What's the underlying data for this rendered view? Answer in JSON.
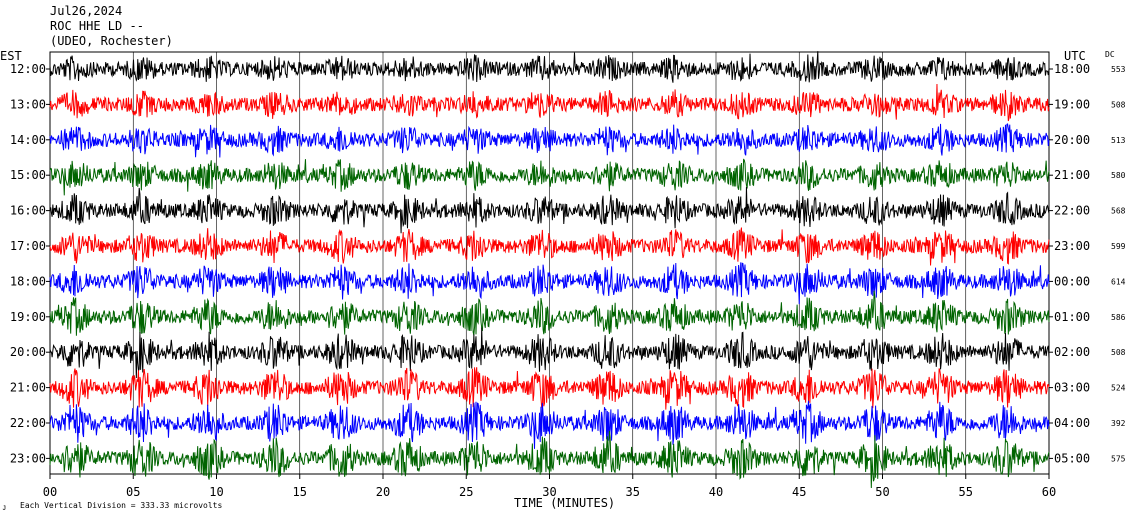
{
  "header": {
    "date": "Jul26,2024",
    "station": "ROC HHE LD --",
    "network": "(UDEO, Rochester)"
  },
  "left_axis_label": "EST",
  "right_axis_label": "UTC",
  "dc_label": "DC",
  "x_axis_title": "TIME (MINUTES)",
  "footnote": "Each Vertical Division =  333.33 microvolts",
  "footnote_mark": "ᴊ",
  "colors": {
    "cycle": [
      "#000000",
      "#ff0000",
      "#0000ff",
      "#006400"
    ],
    "axes": "#000000",
    "grid": "#000000"
  },
  "chart_data": {
    "type": "line",
    "x_range": [
      0,
      60
    ],
    "x_ticks": [
      "00",
      "05",
      "10",
      "15",
      "20",
      "25",
      "30",
      "35",
      "40",
      "45",
      "50",
      "55",
      "60"
    ],
    "rows": [
      {
        "est": "12:00",
        "utc": "18:00",
        "dc": "553"
      },
      {
        "est": "13:00",
        "utc": "19:00",
        "dc": "508"
      },
      {
        "est": "14:00",
        "utc": "20:00",
        "dc": "513"
      },
      {
        "est": "15:00",
        "utc": "21:00",
        "dc": "580"
      },
      {
        "est": "16:00",
        "utc": "22:00",
        "dc": "568"
      },
      {
        "est": "17:00",
        "utc": "23:00",
        "dc": "599"
      },
      {
        "est": "18:00",
        "utc": "00:00",
        "dc": "614"
      },
      {
        "est": "19:00",
        "utc": "01:00",
        "dc": "586"
      },
      {
        "est": "20:00",
        "utc": "02:00",
        "dc": "508"
      },
      {
        "est": "21:00",
        "utc": "03:00",
        "dc": "524"
      },
      {
        "est": "22:00",
        "utc": "04:00",
        "dc": "392"
      },
      {
        "est": "23:00",
        "utc": "05:00",
        "dc": "575"
      }
    ],
    "burst_minutes": [
      1.5,
      5.5,
      9.5,
      13.5,
      17.5,
      21.5,
      25.5,
      29.5,
      33.5,
      37.5,
      41.5,
      45.5,
      49.5,
      53.5,
      57.5
    ]
  }
}
